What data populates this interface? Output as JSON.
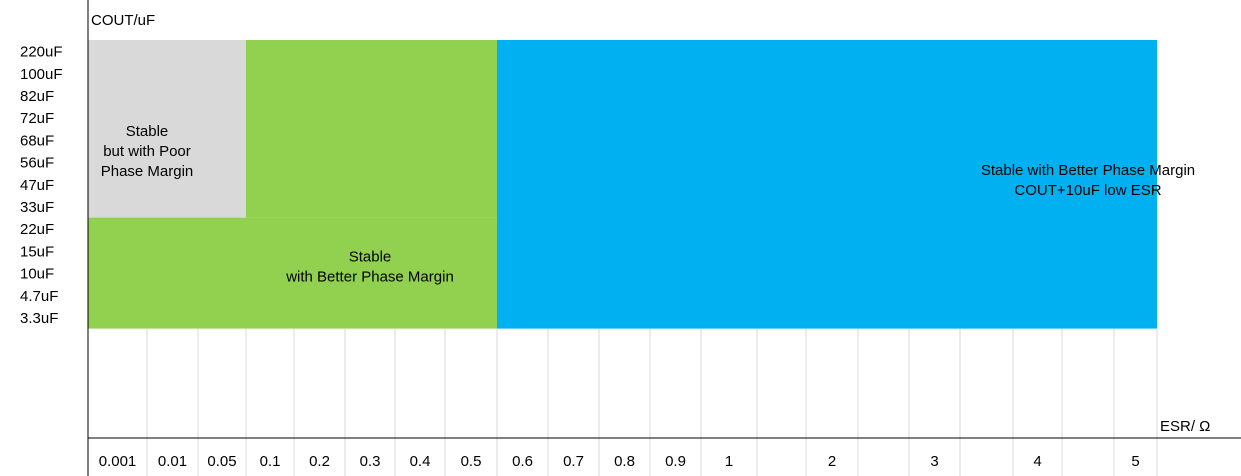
{
  "chart_data": {
    "type": "heatmap",
    "title": "",
    "ylabel": "COUT/uF",
    "xlabel": "ESR/ Ω",
    "y_categories": [
      "220uF",
      "100uF",
      "82uF",
      "72uF",
      "68uF",
      "56uF",
      "47uF",
      "33uF",
      "22uF",
      "15uF",
      "10uF",
      "4.7uF",
      "3.3uF"
    ],
    "x_categories": [
      "0.001",
      "0.01",
      "0.05",
      "0.1",
      "0.2",
      "0.3",
      "0.4",
      "0.5",
      "0.6",
      "0.7",
      "0.8",
      "0.9",
      "1",
      "",
      "2",
      "",
      "3",
      "",
      "4",
      "",
      "5"
    ],
    "grid": true,
    "regions": [
      {
        "label_lines": [
          "Stable",
          "but with Poor",
          "Phase Margin"
        ],
        "color": "#d9d9d9",
        "x_range": [
          "0.001",
          "0.05"
        ],
        "y_range": [
          "220uF",
          "33uF"
        ]
      },
      {
        "label_lines": [
          "Stable",
          "with Better Phase Margin"
        ],
        "color": "#92d050",
        "x_range": [
          "0.001",
          "0.5"
        ],
        "y_range": [
          "22uF",
          "3.3uF"
        ]
      },
      {
        "label_lines": [],
        "color": "#92d050",
        "x_range": [
          "0.1",
          "0.5"
        ],
        "y_range": [
          "220uF",
          "33uF"
        ]
      },
      {
        "label_lines": [
          "Stable with Better Phase Margin",
          "COUT+10uF low ESR"
        ],
        "color": "#00b0f0",
        "x_range": [
          "0.6",
          "5"
        ],
        "y_range": [
          "220uF",
          "3.3uF"
        ]
      }
    ],
    "label_anchors": [
      {
        "region": 0,
        "x_center": 1,
        "y_center": 5
      },
      {
        "region": 1,
        "x_center": 5.5,
        "y_center": 10.2
      },
      {
        "region": 3,
        "x_center": 19.5,
        "y_center": 6.3
      }
    ]
  }
}
